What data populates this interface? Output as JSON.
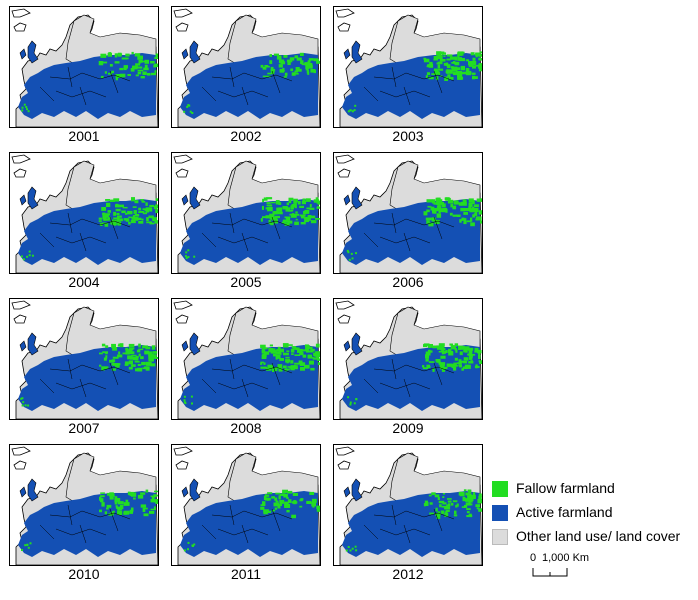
{
  "colors": {
    "fallow": "#22dd22",
    "active": "#1450b4",
    "other": "#dcdcdc",
    "border": "#000000"
  },
  "panels": [
    {
      "year": "2001",
      "fallow_level": 0.35
    },
    {
      "year": "2002",
      "fallow_level": 0.35
    },
    {
      "year": "2003",
      "fallow_level": 0.8
    },
    {
      "year": "2004",
      "fallow_level": 0.7
    },
    {
      "year": "2005",
      "fallow_level": 0.75
    },
    {
      "year": "2006",
      "fallow_level": 0.65
    },
    {
      "year": "2007",
      "fallow_level": 0.6
    },
    {
      "year": "2008",
      "fallow_level": 0.75
    },
    {
      "year": "2009",
      "fallow_level": 0.8
    },
    {
      "year": "2010",
      "fallow_level": 0.4
    },
    {
      "year": "2011",
      "fallow_level": 0.3
    },
    {
      "year": "2012",
      "fallow_level": 0.5
    }
  ],
  "legend": {
    "items": [
      {
        "label": "Fallow farmland",
        "color": "#22dd22"
      },
      {
        "label": "Active farmland",
        "color": "#1450b4"
      },
      {
        "label": "Other land use/ land cover",
        "color": "#dcdcdc"
      }
    ]
  },
  "scale": {
    "zero": "0",
    "label": "1,000 Km"
  }
}
